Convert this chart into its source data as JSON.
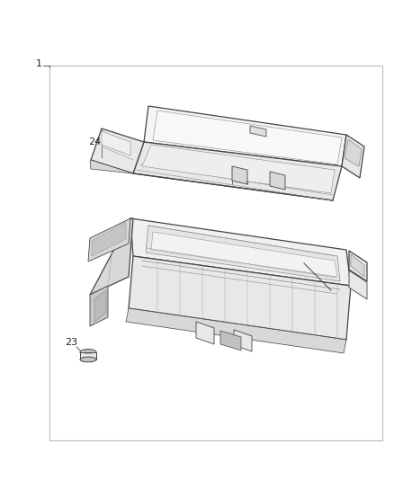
{
  "background_color": "#ffffff",
  "border_color": "#aaaaaa",
  "line_color": "#444444",
  "label_color": "#222222",
  "fig_width": 4.38,
  "fig_height": 5.33,
  "dpi": 100,
  "face_light": "#f5f5f5",
  "face_mid": "#e8e8e8",
  "face_dark": "#d8d8d8",
  "face_darker": "#c8c8c8"
}
